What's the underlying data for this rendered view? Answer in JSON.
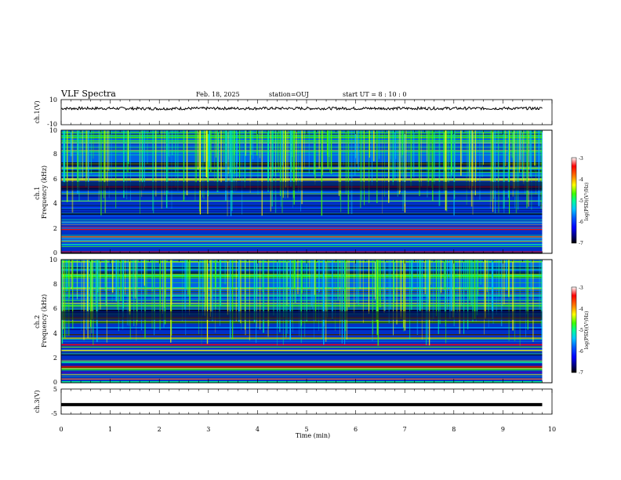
{
  "header": {
    "title": "VLF Spectra",
    "date": "Feb. 18, 2025",
    "station": "station=OUJ",
    "start": "start UT =  8 : 10 : 0"
  },
  "chart_data": [
    {
      "type": "line",
      "panel": "ch1-waveform",
      "ylabel": "ch.1(V)",
      "ylim": [
        -10,
        10
      ],
      "y_ticks": [
        "10",
        "-10"
      ],
      "x": [
        0,
        1,
        2,
        3,
        4,
        5,
        6,
        7,
        8,
        9,
        9.8
      ],
      "series": [
        {
          "values": [
            3,
            3,
            2.8,
            3,
            3,
            3,
            3,
            3,
            3,
            3,
            3
          ]
        }
      ]
    },
    {
      "type": "heatmap",
      "panel": "ch1-spectrogram",
      "ylabel": "ch.1 Frequency (kHz)",
      "ylim": [
        0,
        10
      ],
      "y_ticks": [
        "0",
        "2",
        "4",
        "6",
        "8",
        "10"
      ],
      "xlim": [
        0,
        10
      ],
      "data_extent_x": [
        0,
        9.8
      ],
      "colorbar": {
        "label": "log(PSD)(V²/Hz)",
        "range": [
          -7,
          -3
        ],
        "ticks": [
          "-3",
          "-4",
          "-5",
          "-6",
          "-7"
        ]
      }
    },
    {
      "type": "heatmap",
      "panel": "ch2-spectrogram",
      "ylabel": "ch.2 Frequency (kHz)",
      "ylim": [
        0,
        10
      ],
      "y_ticks": [
        "0",
        "2",
        "4",
        "6",
        "8",
        "10"
      ],
      "xlim": [
        0,
        10
      ],
      "data_extent_x": [
        0,
        9.8
      ],
      "colorbar": {
        "label": "log(PSD)(V²/Hz)",
        "range": [
          -7,
          -3
        ],
        "ticks": [
          "-3",
          "-4",
          "-5",
          "-6",
          "-7"
        ]
      }
    },
    {
      "type": "line",
      "panel": "ch3-waveform",
      "ylabel": "ch.3(V)",
      "ylim": [
        -5,
        5
      ],
      "y_ticks": [
        "5",
        "-5"
      ],
      "x": [
        0,
        9.8
      ],
      "series": [
        {
          "values": [
            -1.2,
            -1.2
          ]
        }
      ]
    }
  ],
  "x_axis": {
    "label": "Time  (min)",
    "xlim": [
      0,
      10
    ],
    "ticks": [
      "0",
      "1",
      "2",
      "3",
      "4",
      "5",
      "6",
      "7",
      "8",
      "9",
      "10"
    ]
  },
  "colors": {
    "background": "#ffffff",
    "frame": "#000000",
    "waveform": "#000000",
    "colormap": [
      "#000000",
      "#00007a",
      "#0000ff",
      "#0060ff",
      "#00c8ff",
      "#00ff90",
      "#40ff00",
      "#ffff00",
      "#ff8000",
      "#ff0000",
      "#ffffff"
    ]
  }
}
